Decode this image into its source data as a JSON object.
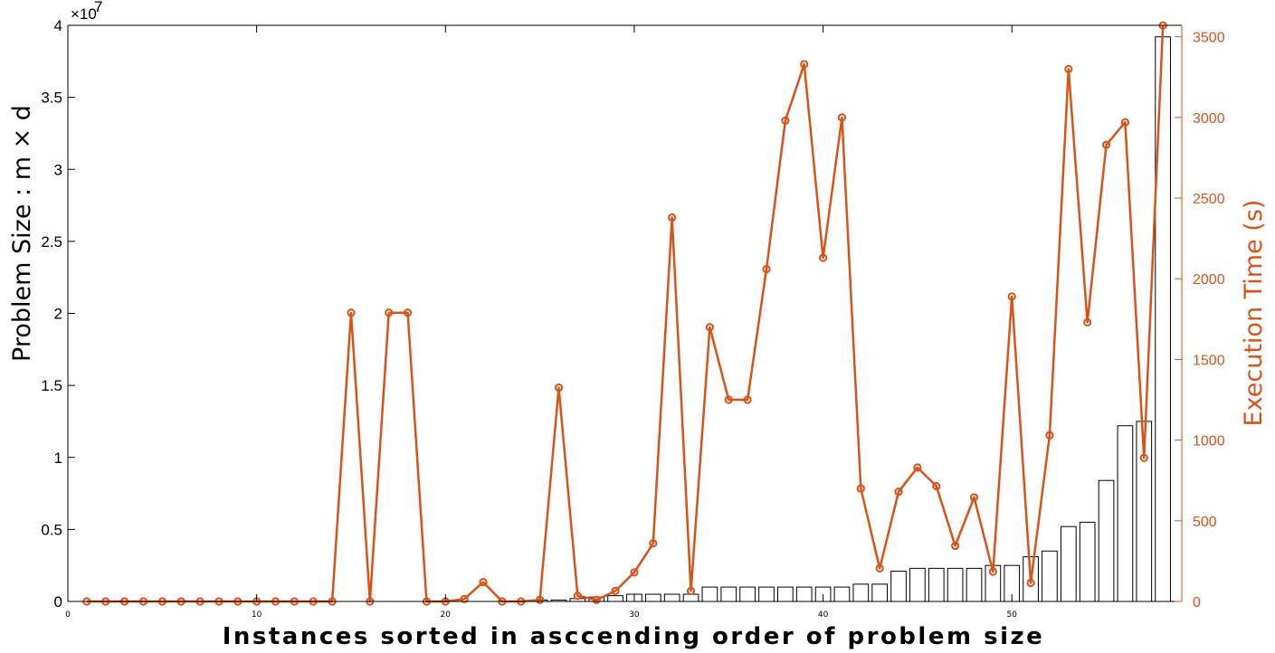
{
  "chart_data": {
    "type": "bar+line",
    "x": [
      1,
      2,
      3,
      4,
      5,
      6,
      7,
      8,
      9,
      10,
      11,
      12,
      13,
      14,
      15,
      16,
      17,
      18,
      19,
      20,
      21,
      22,
      23,
      24,
      25,
      26,
      27,
      28,
      29,
      30,
      31,
      32,
      33,
      34,
      35,
      36,
      37,
      38,
      39,
      40,
      41,
      42,
      43,
      44,
      45,
      46,
      47,
      48,
      49,
      50,
      51,
      52,
      53,
      54,
      55,
      56,
      57,
      58
    ],
    "xlim": [
      0,
      59
    ],
    "x_ticks": [
      0,
      10,
      20,
      30,
      40,
      50
    ],
    "x_tick_labels": [
      "0",
      "10",
      "20",
      "30",
      "40",
      "50"
    ],
    "xlabel": "Instances sorted in asccending order of problem size",
    "left_axis": {
      "label": "Problem Size : m × d",
      "ylim": [
        0,
        4
      ],
      "ticks": [
        0,
        0.5,
        1,
        1.5,
        2,
        2.5,
        3,
        3.5,
        4
      ],
      "tick_labels": [
        "0",
        "0.5",
        "1",
        "1.5",
        "2",
        "2.5",
        "3",
        "3.5",
        "4"
      ],
      "multiplier": "×10",
      "exponent": "7"
    },
    "right_axis": {
      "label": "Execution Time (s)",
      "ylim": [
        0,
        3571
      ],
      "ticks": [
        0,
        500,
        1000,
        1500,
        2000,
        2500,
        3000,
        3500
      ],
      "tick_labels": [
        "0",
        "500",
        "1000",
        "1500",
        "2000",
        "2500",
        "3000",
        "3500"
      ],
      "color": "#d95319"
    },
    "series": [
      {
        "type": "bar",
        "axis": "left",
        "values": [
          0,
          0,
          0,
          0,
          0,
          0,
          0,
          0,
          0,
          0,
          0,
          0,
          0,
          0,
          0,
          0,
          0,
          0,
          0,
          0,
          0,
          0,
          0,
          0,
          0.01,
          0.01,
          0.02,
          0.03,
          0.04,
          0.05,
          0.05,
          0.05,
          0.05,
          0.1,
          0.1,
          0.1,
          0.1,
          0.1,
          0.1,
          0.1,
          0.1,
          0.12,
          0.12,
          0.21,
          0.23,
          0.23,
          0.23,
          0.23,
          0.25,
          0.25,
          0.31,
          0.35,
          0.52,
          0.55,
          0.84,
          1.22,
          1.25,
          3.92
        ],
        "face_color": "#ffffff",
        "edge_color": "#000000"
      },
      {
        "type": "line",
        "axis": "right",
        "values": [
          0,
          0,
          0,
          0,
          0,
          0,
          0,
          0,
          0,
          0,
          0,
          0,
          0,
          0,
          1790,
          0,
          1790,
          1790,
          0,
          0,
          15,
          120,
          0,
          0,
          10,
          1325,
          35,
          10,
          65,
          180,
          360,
          2380,
          65,
          1700,
          1250,
          1250,
          2060,
          2980,
          3330,
          2130,
          3000,
          700,
          205,
          680,
          830,
          715,
          345,
          645,
          185,
          1890,
          115,
          1030,
          3300,
          1730,
          2830,
          2970,
          890,
          3570
        ],
        "color": "#d95319",
        "marker": "o"
      }
    ]
  }
}
